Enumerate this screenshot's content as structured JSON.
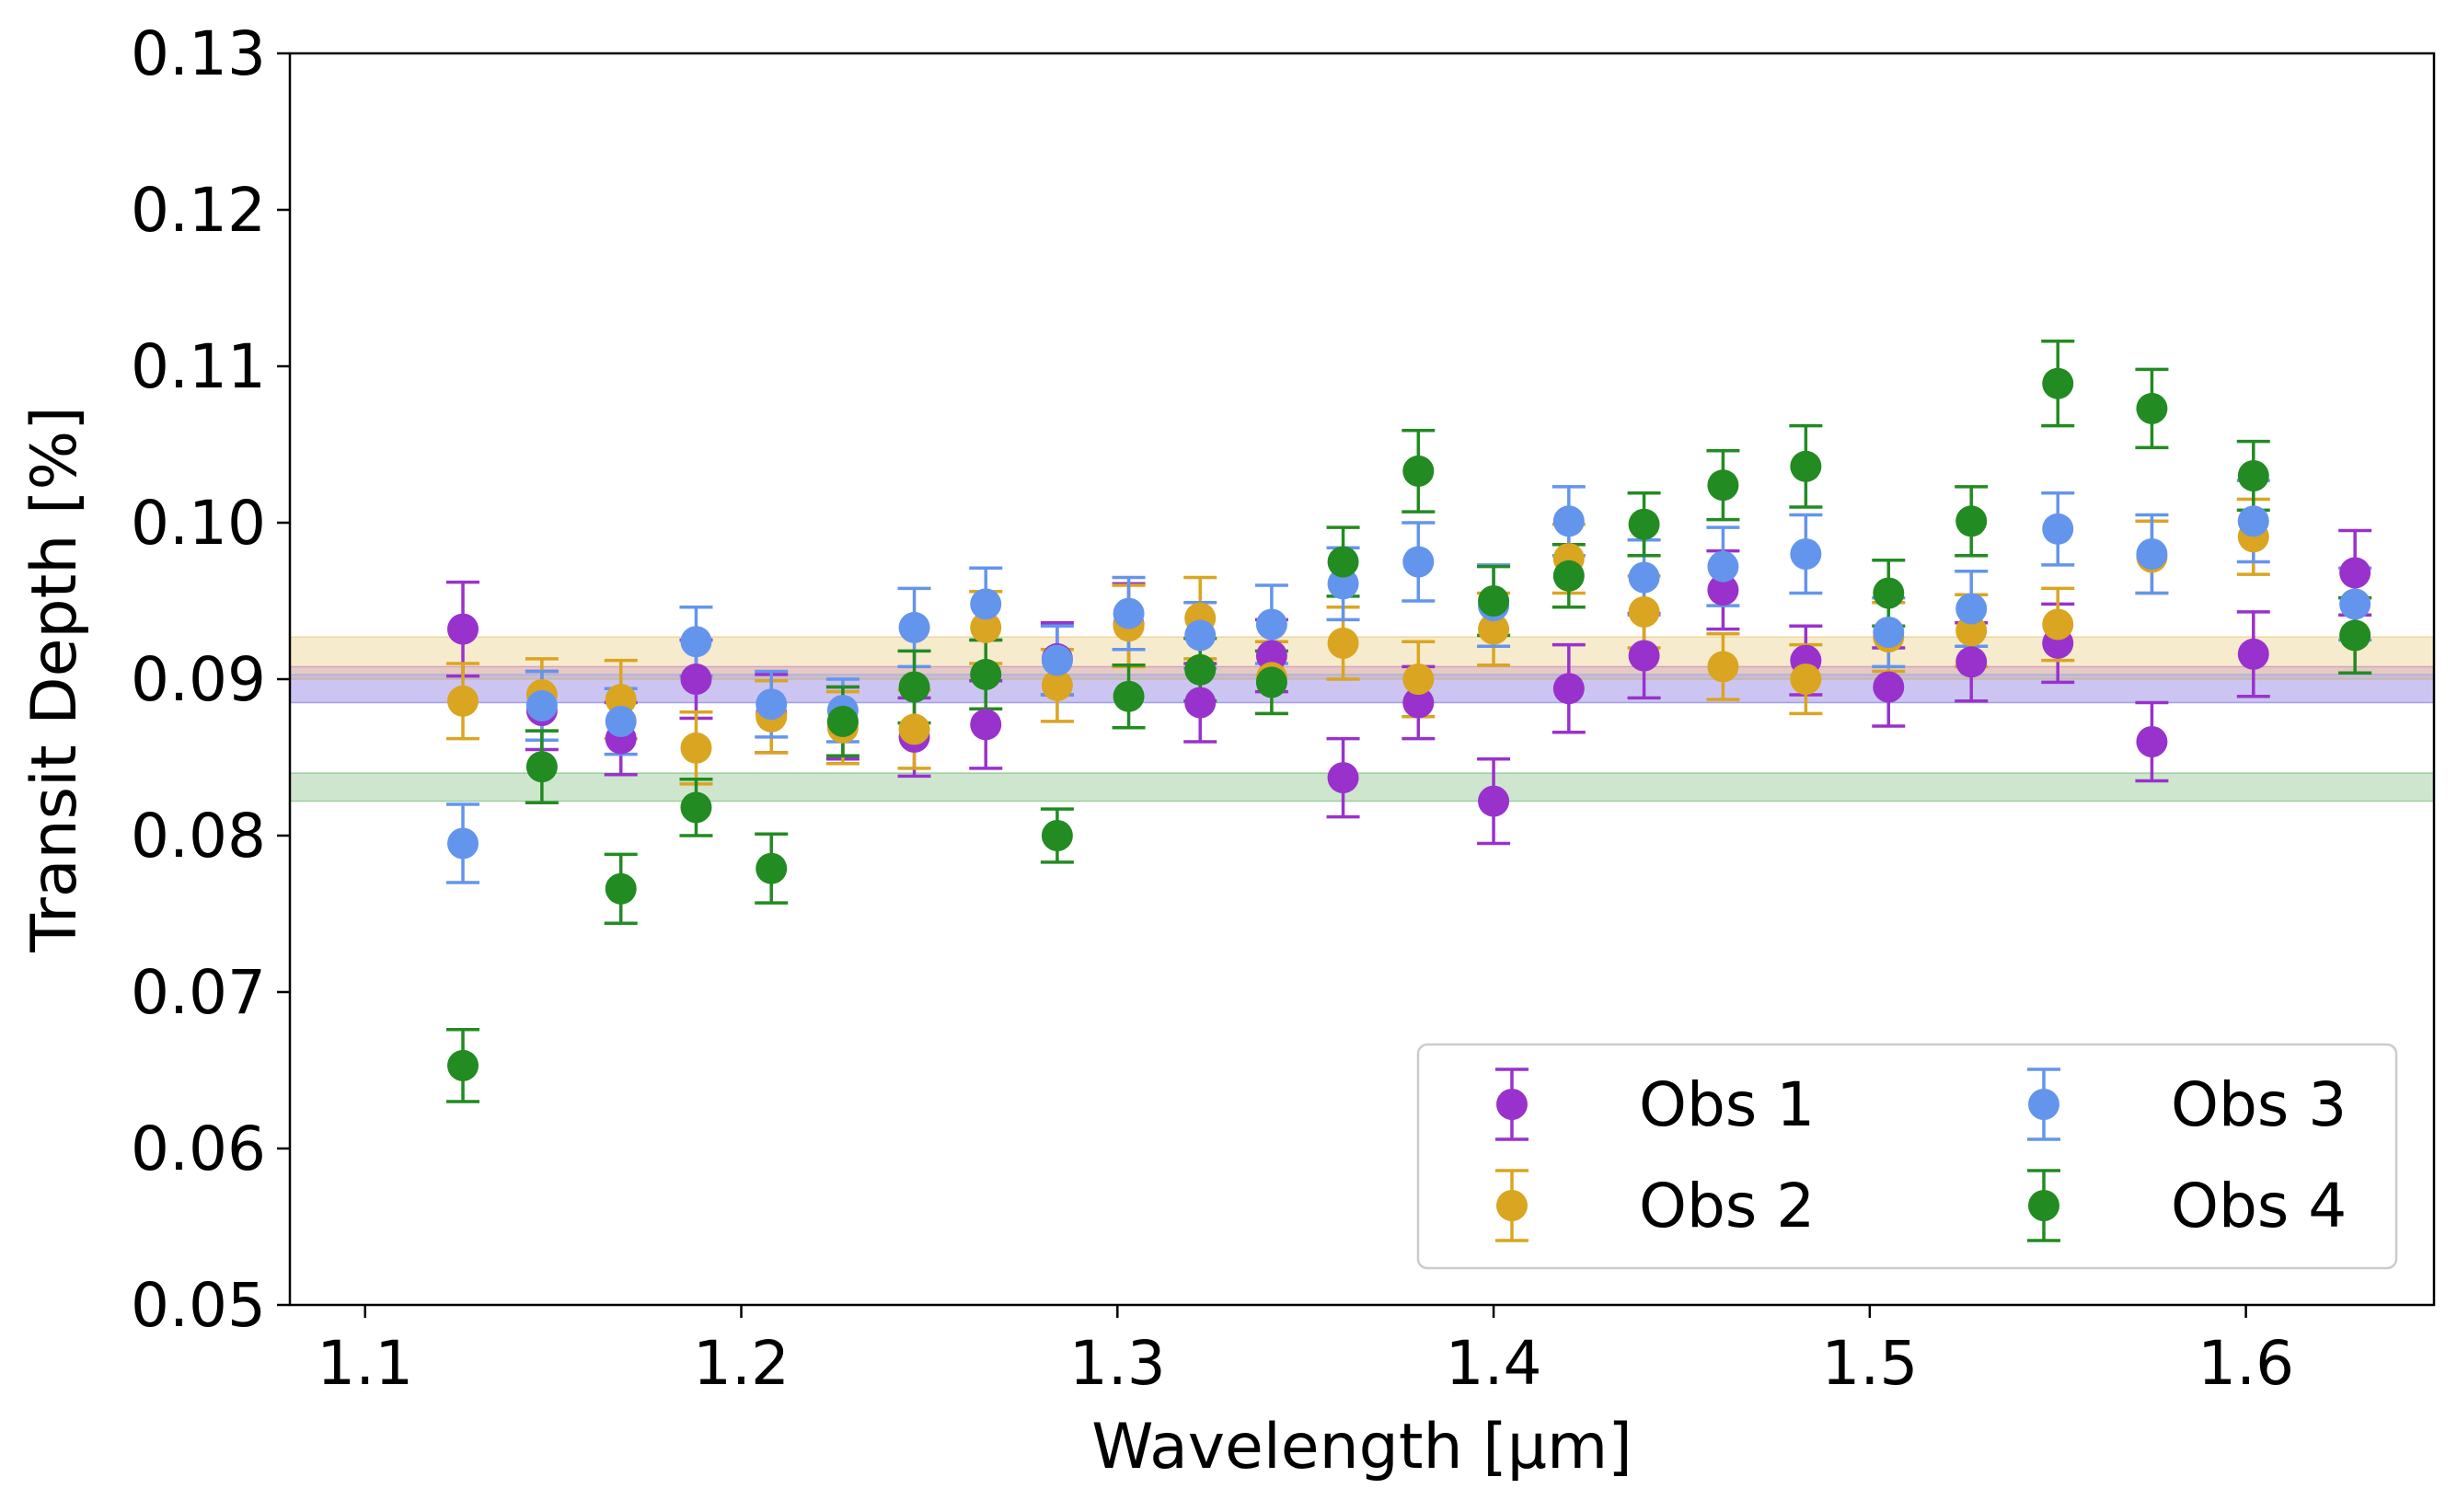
{
  "chart_data": {
    "type": "scatter",
    "xlabel": "Wavelength [μm]",
    "ylabel": "Transit Depth [%]",
    "xlim": [
      1.08,
      1.65
    ],
    "ylim": [
      0.05,
      0.13
    ],
    "x_ticks": [
      "1.1",
      "1.2",
      "1.3",
      "1.4",
      "1.5",
      "1.6"
    ],
    "y_ticks": [
      "0.05",
      "0.06",
      "0.07",
      "0.08",
      "0.09",
      "0.10",
      "0.11",
      "0.12",
      "0.13"
    ],
    "grid": false,
    "legend": {
      "placement": "lower-right",
      "columns": 2
    },
    "x": [
      1.126,
      1.147,
      1.168,
      1.188,
      1.208,
      1.227,
      1.246,
      1.265,
      1.284,
      1.303,
      1.322,
      1.341,
      1.36,
      1.38,
      1.4,
      1.42,
      1.44,
      1.461,
      1.483,
      1.505,
      1.527,
      1.55,
      1.575,
      1.602,
      1.629
    ],
    "series": [
      {
        "name": "Obs 1",
        "color": "#9932CC",
        "values": [
          0.0932,
          0.088,
          0.0862,
          0.09,
          0.0878,
          0.0872,
          0.0863,
          0.0871,
          0.0913,
          0.0935,
          0.0885,
          0.0915,
          0.0837,
          0.0885,
          0.0822,
          0.0894,
          0.0915,
          0.0957,
          0.0912,
          0.0895,
          0.0911,
          0.0923,
          0.086,
          0.0916,
          0.0968
        ],
        "errors": [
          0.003,
          0.0025,
          0.0023,
          0.0025,
          0.0025,
          0.0023,
          0.0025,
          0.0028,
          0.0023,
          0.0026,
          0.0025,
          0.0023,
          0.0025,
          0.0023,
          0.0027,
          0.0028,
          0.0027,
          0.0025,
          0.0022,
          0.0025,
          0.0025,
          0.0025,
          0.0025,
          0.0027,
          0.0027
        ],
        "band": [
          0.0885,
          0.0908
        ]
      },
      {
        "name": "Obs 2",
        "color": "#DAA520",
        "values": [
          0.0886,
          0.089,
          0.0887,
          0.0856,
          0.0876,
          0.0869,
          0.0868,
          0.0933,
          0.0896,
          0.0934,
          0.0939,
          0.0901,
          0.0923,
          0.09,
          0.0932,
          0.0977,
          0.0943,
          0.0908,
          0.09,
          0.0927,
          0.0931,
          0.0935,
          0.0978,
          0.0991,
          0.0928
        ],
        "errors": [
          0.0024,
          0.0023,
          0.0025,
          0.0023,
          0.0023,
          0.0023,
          0.0025,
          0.0023,
          0.0023,
          0.0026,
          0.0026,
          0.0023,
          0.0023,
          0.0024,
          0.0023,
          0.0022,
          0.0023,
          0.0021,
          0.0022,
          0.0022,
          0.0023,
          0.0023,
          0.0023,
          0.0024,
          0.0024
        ],
        "band": [
          0.09,
          0.0927
        ]
      },
      {
        "name": "Obs 3",
        "color": "#6495ED",
        "values": [
          0.0795,
          0.0883,
          0.0873,
          0.0924,
          0.0884,
          0.088,
          0.0933,
          0.0948,
          0.0912,
          0.0942,
          0.0928,
          0.0935,
          0.0961,
          0.0975,
          0.0947,
          0.1001,
          0.0965,
          0.0972,
          0.098,
          0.093,
          0.0945,
          0.0996,
          0.098,
          0.1001,
          0.0948
        ],
        "errors": [
          0.0025,
          0.0022,
          0.0021,
          0.0022,
          0.0021,
          0.002,
          0.0025,
          0.0023,
          0.0022,
          0.0023,
          0.0021,
          0.0025,
          0.0023,
          0.0025,
          0.0026,
          0.0022,
          0.0024,
          0.0025,
          0.0025,
          0.0022,
          0.0024,
          0.0023,
          0.0025,
          0.0026,
          0.0023
        ],
        "band": [
          0.0885,
          0.0903
        ]
      },
      {
        "name": "Obs 4",
        "color": "#228B22",
        "values": [
          0.0653,
          0.0844,
          0.0766,
          0.0818,
          0.0779,
          0.0873,
          0.0895,
          0.0903,
          0.08,
          0.0889,
          0.0906,
          0.0898,
          0.0975,
          0.1033,
          0.095,
          0.0966,
          0.0999,
          0.1024,
          0.1036,
          0.0955,
          0.1001,
          0.1089,
          0.1073,
          0.103,
          0.0928
        ],
        "errors": [
          0.0023,
          0.0023,
          0.0022,
          0.0018,
          0.0022,
          0.0022,
          0.0023,
          0.0022,
          0.0017,
          0.002,
          0.002,
          0.002,
          0.0022,
          0.0026,
          0.0022,
          0.002,
          0.002,
          0.0022,
          0.0026,
          0.0021,
          0.0022,
          0.0027,
          0.0025,
          0.0022,
          0.0024
        ],
        "band": [
          0.0822,
          0.084
        ]
      }
    ]
  }
}
